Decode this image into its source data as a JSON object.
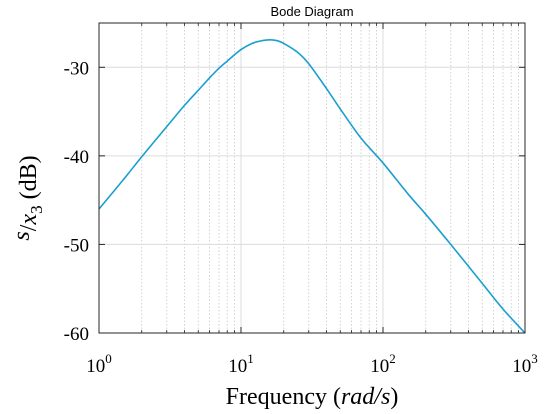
{
  "chart_data": {
    "type": "line",
    "title": "Bode Diagram",
    "xlabel_prefix": "Frequency (",
    "xlabel_unit": "rad/s",
    "xlabel_suffix": ")",
    "ylabel_numerator": "s",
    "ylabel_denominator": "x",
    "ylabel_subscript": "3",
    "ylabel_unit": " (dB)",
    "x_scale": "log",
    "xlim": [
      1,
      1000
    ],
    "ylim": [
      -60,
      -25
    ],
    "x_ticks": [
      {
        "base": "10",
        "exp": "0",
        "value": 1
      },
      {
        "base": "10",
        "exp": "1",
        "value": 10
      },
      {
        "base": "10",
        "exp": "2",
        "value": 100
      },
      {
        "base": "10",
        "exp": "3",
        "value": 1000
      }
    ],
    "y_ticks": [
      {
        "label": "-30",
        "value": -30
      },
      {
        "label": "-40",
        "value": -40
      },
      {
        "label": "-50",
        "value": -50
      },
      {
        "label": "-60",
        "value": -60
      }
    ],
    "grid": true,
    "series": [
      {
        "color": "#1a9fd0",
        "x": [
          1,
          1.5,
          2,
          3,
          4,
          5,
          6,
          7,
          8,
          10,
          12,
          14,
          16,
          18,
          20,
          25,
          30,
          40,
          50,
          70,
          100,
          150,
          200,
          300,
          500,
          700,
          1000
        ],
        "y": [
          -46,
          -42.6,
          -40.1,
          -36.7,
          -34.3,
          -32.6,
          -31.2,
          -30.1,
          -29.3,
          -28.0,
          -27.3,
          -27.0,
          -26.9,
          -27.0,
          -27.3,
          -28.3,
          -29.6,
          -32.4,
          -34.7,
          -38.0,
          -40.8,
          -44.3,
          -46.6,
          -50.0,
          -54.4,
          -57.3,
          -60
        ]
      }
    ]
  }
}
